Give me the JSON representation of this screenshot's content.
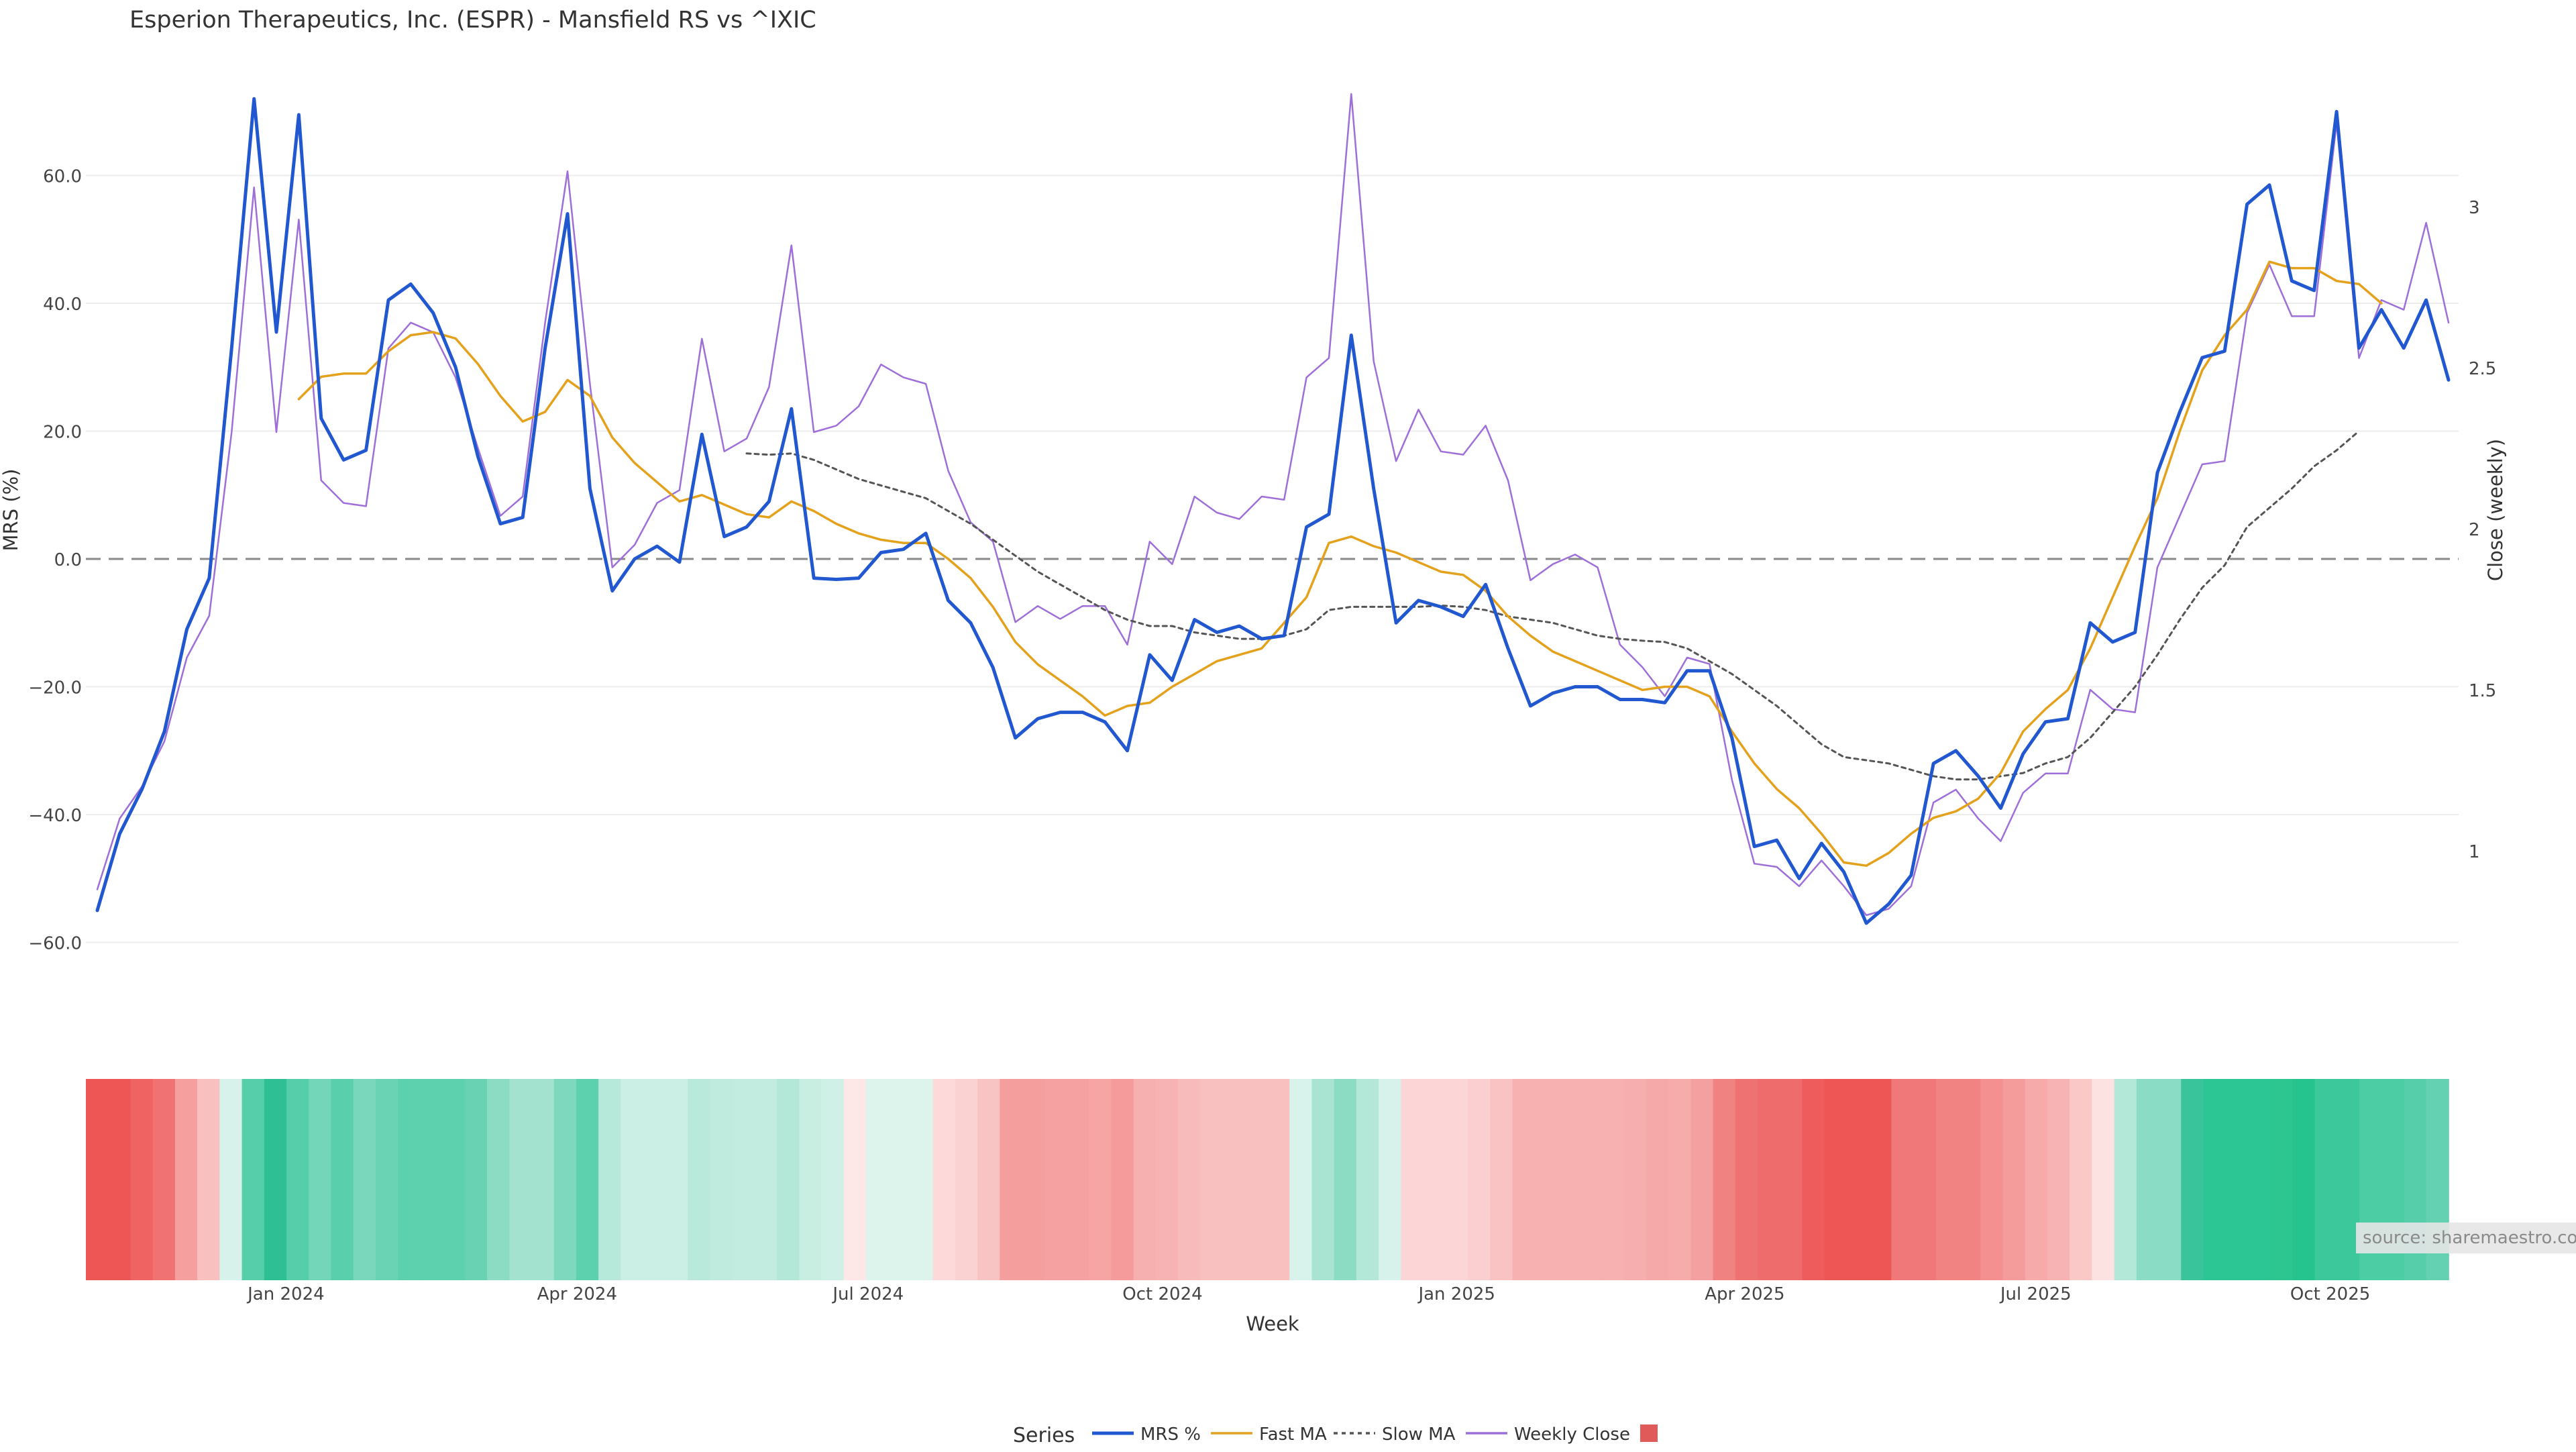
{
  "chart_data": {
    "type": "line",
    "title": "Esperion Therapeutics, Inc. (ESPR) - Mansfield RS vs ^IXIC",
    "xlabel": "Week",
    "ylabel_left": "MRS (%)",
    "ylabel_right": "Close (weekly)",
    "ylim_left": [
      -70.0,
      72.0
    ],
    "ylim_right": [
      0.55,
      3.3
    ],
    "yticks_left": [
      "60.0",
      "40.0",
      "20.0",
      "0.0",
      "−20.0",
      "−40.0",
      "−60.0"
    ],
    "yticks_left_values": [
      60,
      40,
      20,
      0,
      -20,
      -40,
      -60
    ],
    "yticks_right": [
      "3",
      "2.5",
      "2",
      "1.5",
      "1"
    ],
    "yticks_right_values": [
      3,
      2.5,
      2,
      1.5,
      1
    ],
    "x_start": "2023-11-03",
    "x_step_days": 7,
    "xtick_labels": [
      {
        "label": "Jan 2024",
        "date": "2024-01-01"
      },
      {
        "label": "Apr 2024",
        "date": "2024-04-01"
      },
      {
        "label": "Jul 2024",
        "date": "2024-07-01"
      },
      {
        "label": "Oct 2024",
        "date": "2024-10-01"
      },
      {
        "label": "Jan 2025",
        "date": "2025-01-01"
      },
      {
        "label": "Apr 2025",
        "date": "2025-04-01"
      },
      {
        "label": "Jul 2025",
        "date": "2025-07-01"
      },
      {
        "label": "Oct 2025",
        "date": "2025-10-01"
      }
    ],
    "legend_title": "Series",
    "legend_position": "bottom",
    "source_note": "source: sharemaestro.com",
    "series": [
      {
        "name": "MRS %",
        "axis": "left",
        "color": "#2158d0",
        "dash": "solid",
        "values": [
          -55.0,
          -43.0,
          -36.0,
          -27.0,
          -11.0,
          -3.0,
          33.0,
          72.0,
          35.5,
          69.5,
          22.0,
          15.5,
          17.0,
          40.5,
          43.0,
          38.5,
          30.0,
          16.0,
          5.5,
          6.5,
          33.0,
          54.0,
          11.0,
          -5.0,
          0.0,
          2.0,
          -0.5,
          19.5,
          3.5,
          5.0,
          9.0,
          23.5,
          -3.0,
          -3.2,
          -3.0,
          1.0,
          1.5,
          4.0,
          -6.5,
          -10.0,
          -17.0,
          -28.0,
          -25.0,
          -24.0,
          -24.0,
          -25.5,
          -30.0,
          -15.0,
          -19.0,
          -9.5,
          -11.5,
          -10.5,
          -12.5,
          -12.0,
          5.0,
          7.0,
          35.0,
          11.0,
          -10.0,
          -6.5,
          -7.5,
          -9.0,
          -4.0,
          -14.0,
          -23.0,
          -21.0,
          -20.0,
          -20.0,
          -22.0,
          -22.0,
          -22.5,
          -17.5,
          -17.5,
          -28.0,
          -45.0,
          -44.0,
          -50.0,
          -44.5,
          -49.0,
          -57.0,
          -54.0,
          -49.5,
          -32.0,
          -30.0,
          -34.0,
          -39.0,
          -30.5,
          -25.5,
          -25.0,
          -10.0,
          -13.0,
          -11.5,
          13.5,
          23.0,
          31.5,
          32.5,
          55.5,
          58.5,
          43.5,
          42.0,
          70.0,
          33.0,
          39.0,
          33.0,
          40.5,
          28.0
        ]
      },
      {
        "name": "Fast MA",
        "axis": "left",
        "color": "#e3a11c",
        "dash": "solid",
        "values": [
          null,
          null,
          null,
          null,
          null,
          null,
          null,
          null,
          null,
          25.0,
          28.5,
          29.0,
          29.0,
          32.5,
          35.0,
          35.5,
          34.5,
          30.5,
          25.5,
          21.5,
          23.0,
          28.0,
          25.5,
          19.0,
          15.0,
          12.0,
          9.0,
          10.0,
          8.5,
          7.0,
          6.5,
          9.0,
          7.5,
          5.5,
          4.0,
          3.0,
          2.5,
          2.5,
          0.0,
          -3.0,
          -7.5,
          -13.0,
          -16.5,
          -19.0,
          -21.5,
          -24.5,
          -23.0,
          -22.5,
          -20.0,
          -18.0,
          -16.0,
          -15.0,
          -14.0,
          -10.0,
          -6.0,
          2.5,
          3.5,
          2.0,
          1.0,
          -0.5,
          -2.0,
          -2.5,
          -5.0,
          -9.0,
          -12.0,
          -14.5,
          -16.0,
          -17.5,
          -19.0,
          -20.5,
          -20.0,
          -20.0,
          -21.5,
          -27.0,
          -32.0,
          -36.0,
          -39.0,
          -43.0,
          -47.5,
          -48.0,
          -46.0,
          -43.0,
          -40.5,
          -39.5,
          -37.5,
          -33.5,
          -27.0,
          -23.5,
          -20.5,
          -14.0,
          -6.0,
          2.0,
          9.5,
          20.0,
          29.5,
          35.0,
          39.0,
          46.5,
          45.5,
          45.5,
          43.5,
          43.0,
          40.0
        ]
      },
      {
        "name": "Slow MA",
        "axis": "left",
        "color": "#555555",
        "dash": "dotted",
        "values": [
          null,
          null,
          null,
          null,
          null,
          null,
          null,
          null,
          null,
          null,
          null,
          null,
          null,
          null,
          null,
          null,
          null,
          null,
          null,
          null,
          null,
          null,
          null,
          null,
          null,
          null,
          null,
          null,
          null,
          16.5,
          16.3,
          16.5,
          15.5,
          14.0,
          12.5,
          11.5,
          10.5,
          9.5,
          7.5,
          5.5,
          3.0,
          0.5,
          -2.0,
          -4.0,
          -6.0,
          -8.0,
          -9.5,
          -10.5,
          -10.5,
          -11.5,
          -12.0,
          -12.5,
          -12.5,
          -12.0,
          -11.0,
          -8.0,
          -7.5,
          -7.5,
          -7.5,
          -7.5,
          -7.3,
          -7.5,
          -8.0,
          -9.0,
          -9.5,
          -10.0,
          -11.0,
          -12.0,
          -12.5,
          -12.8,
          -13.0,
          -14.0,
          -16.0,
          -18.0,
          -20.5,
          -23.0,
          -26.0,
          -29.0,
          -31.0,
          -31.5,
          -32.0,
          -33.0,
          -34.0,
          -34.5,
          -34.5,
          -34.0,
          -33.5,
          -32.0,
          -31.0,
          -28.0,
          -24.0,
          -20.0,
          -15.0,
          -9.5,
          -4.5,
          -1.0,
          5.0,
          8.0,
          11.0,
          14.5,
          17.0,
          20.0
        ]
      },
      {
        "name": "Weekly Close",
        "axis": "right",
        "color": "#9e6fd9",
        "dash": "solid",
        "values": [
          0.88,
          1.1,
          1.2,
          1.34,
          1.6,
          1.73,
          2.3,
          3.06,
          2.3,
          2.96,
          2.15,
          2.08,
          2.07,
          2.56,
          2.64,
          2.61,
          2.47,
          2.25,
          2.04,
          2.1,
          2.64,
          3.11,
          2.45,
          1.88,
          1.95,
          2.08,
          2.12,
          2.59,
          2.24,
          2.28,
          2.44,
          2.88,
          2.3,
          2.32,
          2.38,
          2.51,
          2.47,
          2.45,
          2.18,
          2.02,
          1.96,
          1.71,
          1.76,
          1.72,
          1.76,
          1.76,
          1.64,
          1.96,
          1.89,
          2.1,
          2.05,
          2.03,
          2.1,
          2.09,
          2.47,
          2.53,
          3.35,
          2.52,
          2.21,
          2.37,
          2.24,
          2.23,
          2.32,
          2.15,
          1.84,
          1.89,
          1.92,
          1.88,
          1.64,
          1.57,
          1.48,
          1.6,
          1.58,
          1.22,
          0.96,
          0.95,
          0.89,
          0.97,
          0.89,
          0.8,
          0.82,
          0.89,
          1.15,
          1.19,
          1.1,
          1.03,
          1.18,
          1.24,
          1.24,
          1.5,
          1.44,
          1.43,
          1.88,
          2.04,
          2.2,
          2.21,
          2.67,
          2.82,
          2.66,
          2.66,
          3.26,
          2.53,
          2.71,
          2.68,
          2.95,
          2.64
        ]
      },
      {
        "name": "",
        "axis": "none",
        "color": "#e05a5a",
        "legend_symbol": "square"
      }
    ],
    "heatmap_colors": [
      "#ee5555",
      "#ee5656",
      "#ef6363",
      "#f17272",
      "#f59f9f",
      "#f9c0c0",
      "#d7f2ea",
      "#57ceaa",
      "#2ebf95",
      "#57ceaa",
      "#74d6b9",
      "#59cfab",
      "#7ad7bc",
      "#6ad3b3",
      "#5dd0ae",
      "#5dd0ae",
      "#5dd0ae",
      "#69d2b3",
      "#8cdcc4",
      "#a2e2cf",
      "#a2e2cf",
      "#7dd8bd",
      "#5dd0ae",
      "#b7e9da",
      "#cbefe4",
      "#cbefe4",
      "#cbefe4",
      "#b8e9db",
      "#bfebde",
      "#c2ecdf",
      "#c2ecdf",
      "#b3e8d8",
      "#c8eee2",
      "#cff0e6",
      "#fde7e7",
      "#dcf4ec",
      "#dcf4ec",
      "#dcf4ec",
      "#fdd9d9",
      "#fad2d2",
      "#f8c3c3",
      "#f59e9e",
      "#f59e9e",
      "#f6a1a1",
      "#f6a1a1",
      "#f6a4a4",
      "#f59b9b",
      "#f7b0b0",
      "#f7b3b3",
      "#f8bbbb",
      "#f9c0c0",
      "#f9c0c0",
      "#f9c0c0",
      "#f9c0c0",
      "#d8f3eb",
      "#a9e4d2",
      "#8cdcc4",
      "#b3e8d8",
      "#d6f2ea",
      "#fcd6d6",
      "#fcd6d6",
      "#fcd6d6",
      "#fbcfcf",
      "#f9c3c3",
      "#f7b1b1",
      "#f7b1b1",
      "#f7b1b1",
      "#f7b1b1",
      "#f7b1b1",
      "#f7aeae",
      "#f6a9a9",
      "#f7acac",
      "#f5a0a0",
      "#f18282",
      "#ef7272",
      "#ee6c6c",
      "#ee6c6c",
      "#ee5c5c",
      "#ee5555",
      "#ee5555",
      "#ee5555",
      "#f07878",
      "#f07878",
      "#f18383",
      "#f18383",
      "#f49090",
      "#f49b9b",
      "#f6aaaa",
      "#f7b3b3",
      "#fbc8c8",
      "#fde2e2",
      "#b3e8d8",
      "#8bdcc4",
      "#8bdcc4",
      "#3ac49b",
      "#2cc594",
      "#2cc594",
      "#2cc594",
      "#2ec690",
      "#25c48f",
      "#3cc89b",
      "#3cc89b",
      "#4dcda4",
      "#4dcda4",
      "#57ceaa",
      "#64d2b2"
    ]
  }
}
